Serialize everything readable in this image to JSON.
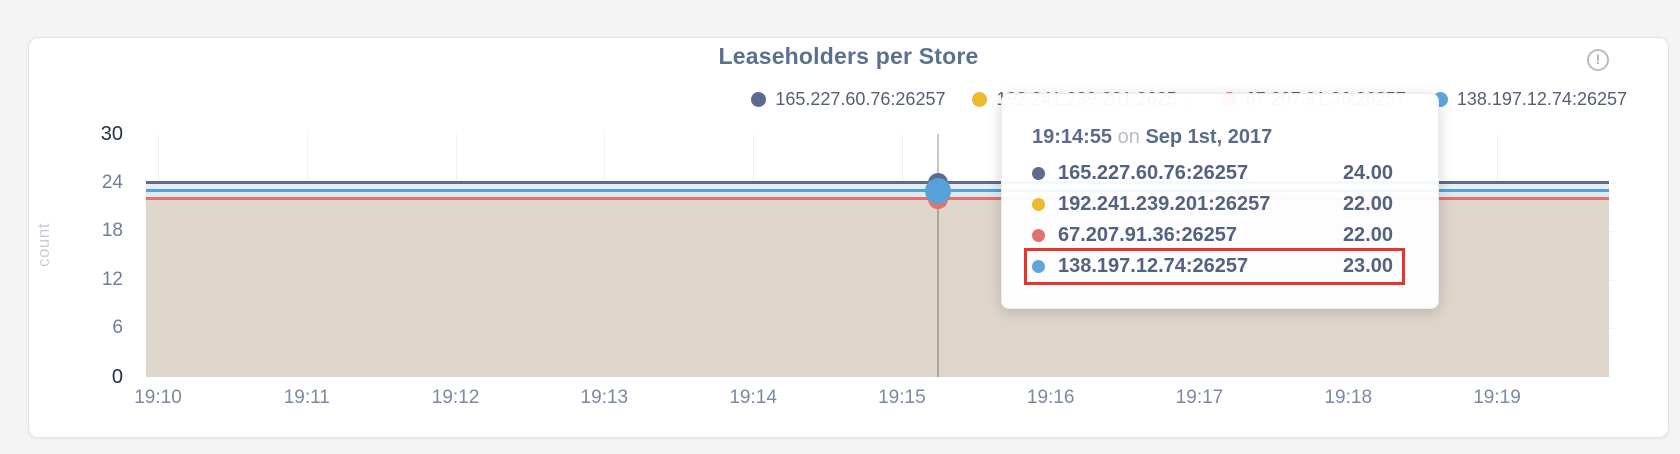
{
  "chart": {
    "title": "Leaseholders per Store",
    "info_icon_glyph": "!"
  },
  "legend": {
    "items": [
      {
        "label": "165.227.60.76:26257",
        "color": "#5b6c8f"
      },
      {
        "label": "192.241.239.201:2625…",
        "color": "#ecba2d"
      },
      {
        "label": "67.207.91.36:26257",
        "color": "#e3716d"
      },
      {
        "label": "138.197.12.74:26257",
        "color": "#5fa7db"
      }
    ]
  },
  "tooltip": {
    "time": "19:14:55",
    "conjunction": "on",
    "date": "Sep 1st, 2017",
    "highlight_color": "#e5342c",
    "rows": [
      {
        "name": "165.227.60.76:26257",
        "value": "24.00",
        "color": "#5b6c8f",
        "highlighted": false
      },
      {
        "name": "192.241.239.201:26257",
        "value": "22.00",
        "color": "#ecba2d",
        "highlighted": false
      },
      {
        "name": "67.207.91.36:26257",
        "value": "22.00",
        "color": "#e3716d",
        "highlighted": false
      },
      {
        "name": "138.197.12.74:26257",
        "value": "23.00",
        "color": "#5fa7db",
        "highlighted": true
      }
    ]
  },
  "chart_data": {
    "type": "area",
    "title": "Leaseholders per Store",
    "xlabel": "",
    "ylabel": "count",
    "x": [
      "19:10",
      "19:11",
      "19:12",
      "19:13",
      "19:14",
      "19:15",
      "19:16",
      "19:17",
      "19:18",
      "19:19"
    ],
    "yticks": [
      0,
      6,
      12,
      18,
      24,
      30
    ],
    "ylim": [
      0,
      30
    ],
    "grid": true,
    "legend_position": "top-right",
    "series": [
      {
        "name": "165.227.60.76:26257",
        "values": [
          24,
          24,
          24,
          24,
          24,
          24,
          24,
          24,
          24,
          24
        ],
        "line_color": "#5b6c8f",
        "fill_color": "#e9edf2"
      },
      {
        "name": "192.241.239.201:26257",
        "values": [
          22,
          22,
          22,
          22,
          22,
          22,
          22,
          22,
          22,
          22
        ],
        "line_color": "#ecba2d",
        "fill_color": "#ded5cb"
      },
      {
        "name": "67.207.91.36:26257",
        "values": [
          22,
          22,
          22,
          22,
          22,
          22,
          22,
          22,
          22,
          22
        ],
        "line_color": "#e3716d",
        "fill_color": "#ded5cb"
      },
      {
        "name": "138.197.12.74:26257",
        "values": [
          23,
          23,
          23,
          23,
          23,
          23,
          23,
          23,
          23,
          23
        ],
        "line_color": "#55a1d8",
        "fill_color": "#dfe9f3"
      }
    ],
    "hover": {
      "time": "19:14:55",
      "x_minutes": 5.24,
      "dots": [
        {
          "series": 0,
          "value": 24,
          "r": 10
        },
        {
          "series": 2,
          "value": 22,
          "r": 10
        },
        {
          "series": 3,
          "value": 23,
          "r": 13
        }
      ]
    }
  }
}
